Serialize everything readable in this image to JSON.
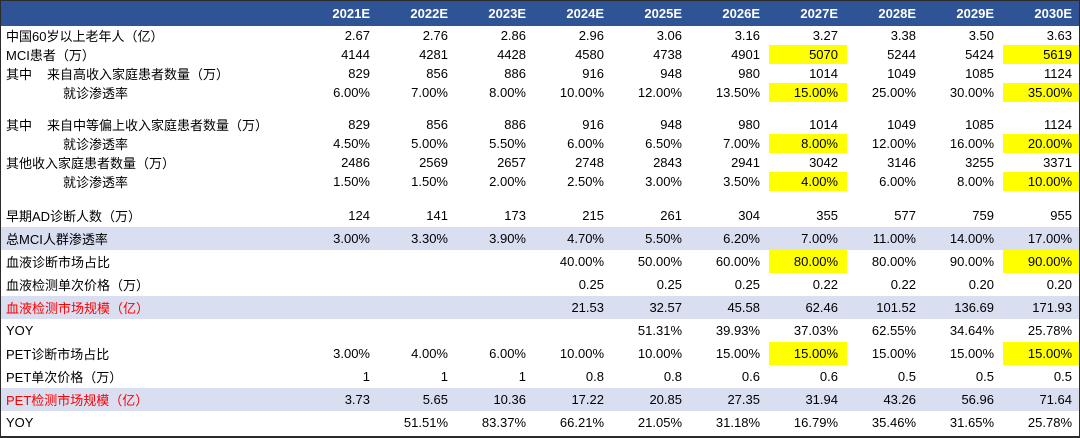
{
  "table": {
    "colors": {
      "header_bg": "#2F5496",
      "header_text": "#FFFFFF",
      "band_bg": "#D9DEF1",
      "highlight_bg": "#FFFF00",
      "red_label": "#FF0000"
    },
    "columns": [
      "2021E",
      "2022E",
      "2023E",
      "2024E",
      "2025E",
      "2026E",
      "2027E",
      "2028E",
      "2029E",
      "2030E"
    ],
    "rows": [
      {
        "label": "中国60岁以上老年人（亿）",
        "values": [
          "2.67",
          "2.76",
          "2.86",
          "2.96",
          "3.06",
          "3.16",
          "3.27",
          "3.38",
          "3.50",
          "3.63"
        ]
      },
      {
        "label": "MCI患者（万）",
        "values": [
          "4144",
          "4281",
          "4428",
          "4580",
          "4738",
          "4901",
          "5070",
          "5244",
          "5424",
          "5619"
        ],
        "highlight_cols": [
          6,
          9
        ]
      },
      {
        "prefix": "其中",
        "label": "来自高收入家庭患者数量（万）",
        "values": [
          "829",
          "856",
          "886",
          "916",
          "948",
          "980",
          "1014",
          "1049",
          "1085",
          "1124"
        ]
      },
      {
        "label": "就诊渗透率",
        "indent": true,
        "values": [
          "6.00%",
          "7.00%",
          "8.00%",
          "10.00%",
          "12.00%",
          "13.50%",
          "15.00%",
          "25.00%",
          "30.00%",
          "35.00%"
        ],
        "highlight_cols": [
          6,
          9
        ]
      },
      {
        "kind": "spacer"
      },
      {
        "prefix": "其中",
        "label": "来自中等偏上收入家庭患者数量（万）",
        "values": [
          "829",
          "856",
          "886",
          "916",
          "948",
          "980",
          "1014",
          "1049",
          "1085",
          "1124"
        ]
      },
      {
        "label": "就诊渗透率",
        "indent": true,
        "values": [
          "4.50%",
          "5.00%",
          "5.50%",
          "6.00%",
          "6.50%",
          "7.00%",
          "8.00%",
          "12.00%",
          "16.00%",
          "20.00%"
        ],
        "highlight_cols": [
          6,
          9
        ]
      },
      {
        "label": "其他收入家庭患者数量（万）",
        "values": [
          "2486",
          "2569",
          "2657",
          "2748",
          "2843",
          "2941",
          "3042",
          "3146",
          "3255",
          "3371"
        ]
      },
      {
        "label": "就诊渗透率",
        "indent": true,
        "values": [
          "1.50%",
          "1.50%",
          "2.00%",
          "2.50%",
          "3.00%",
          "3.50%",
          "4.00%",
          "6.00%",
          "8.00%",
          "10.00%"
        ],
        "highlight_cols": [
          6,
          9
        ]
      },
      {
        "kind": "spacer"
      },
      {
        "label": "早期AD诊断人数（万）",
        "values": [
          "124",
          "141",
          "173",
          "215",
          "261",
          "304",
          "355",
          "577",
          "759",
          "955"
        ]
      },
      {
        "label": "总MCI人群渗透率",
        "row_style": "band",
        "values": [
          "3.00%",
          "3.30%",
          "3.90%",
          "4.70%",
          "5.50%",
          "6.20%",
          "7.00%",
          "11.00%",
          "14.00%",
          "17.00%"
        ]
      },
      {
        "label": "血液诊断市场占比",
        "values": [
          "",
          "",
          "",
          "40.00%",
          "50.00%",
          "60.00%",
          "80.00%",
          "80.00%",
          "90.00%",
          "90.00%"
        ],
        "highlight_cols": [
          6,
          9
        ]
      },
      {
        "label": "血液检测单次价格（万）",
        "values": [
          "",
          "",
          "",
          "0.25",
          "0.25",
          "0.25",
          "0.22",
          "0.22",
          "0.20",
          "0.20"
        ]
      },
      {
        "label": "血液检测市场规模（亿）",
        "label_style": "red",
        "row_style": "band",
        "values": [
          "",
          "",
          "",
          "21.53",
          "32.57",
          "45.58",
          "62.46",
          "101.52",
          "136.69",
          "171.93"
        ]
      },
      {
        "label": "YOY",
        "values": [
          "",
          "",
          "",
          "",
          "51.31%",
          "39.93%",
          "37.03%",
          "62.55%",
          "34.64%",
          "25.78%"
        ]
      },
      {
        "label": "PET诊断市场占比",
        "values": [
          "3.00%",
          "4.00%",
          "6.00%",
          "10.00%",
          "10.00%",
          "15.00%",
          "15.00%",
          "15.00%",
          "15.00%",
          "15.00%"
        ],
        "highlight_cols": [
          6,
          9
        ]
      },
      {
        "label": "PET单次价格（万）",
        "values": [
          "1",
          "1",
          "1",
          "0.8",
          "0.8",
          "0.6",
          "0.6",
          "0.5",
          "0.5",
          "0.5"
        ]
      },
      {
        "label": "PET检测市场规模（亿）",
        "label_style": "red",
        "row_style": "band",
        "values": [
          "3.73",
          "5.65",
          "10.36",
          "17.22",
          "20.85",
          "27.35",
          "31.94",
          "43.26",
          "56.96",
          "71.64"
        ]
      },
      {
        "label": "YOY",
        "values": [
          "",
          "51.51%",
          "83.37%",
          "66.21%",
          "21.05%",
          "31.18%",
          "16.79%",
          "35.46%",
          "31.65%",
          "25.78%"
        ]
      }
    ]
  }
}
